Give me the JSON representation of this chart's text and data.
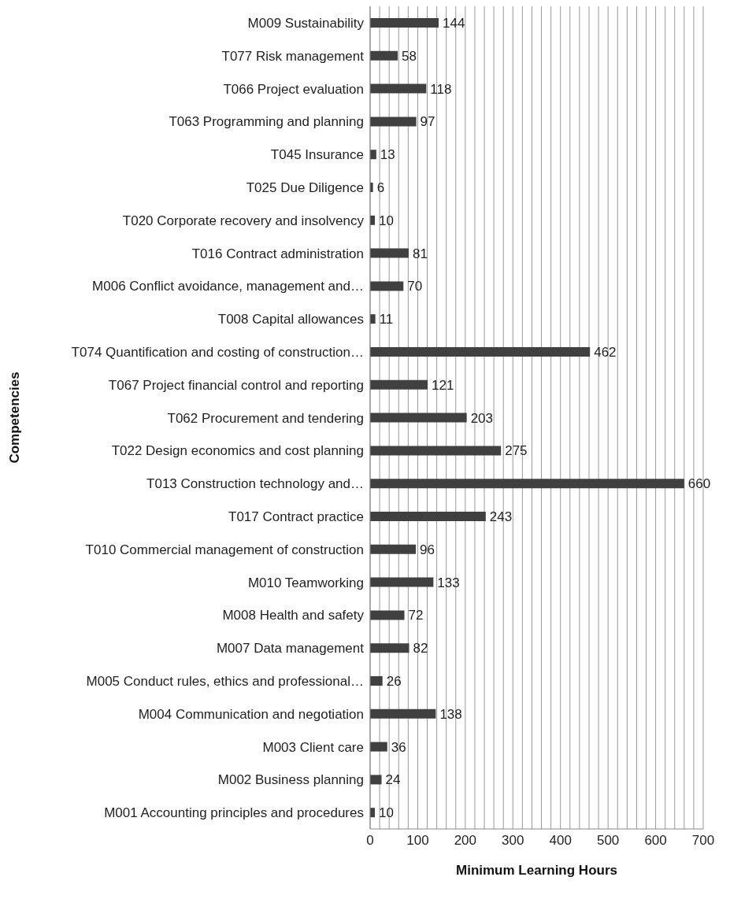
{
  "chart_data": {
    "type": "bar",
    "orientation": "horizontal",
    "xlabel": "Minimum Learning Hours",
    "ylabel": "Competencies",
    "categories": [
      "M009 Sustainability",
      "T077 Risk management",
      "T066 Project evaluation",
      "T063 Programming and planning",
      "T045 Insurance",
      "T025 Due Diligence",
      "T020 Corporate recovery and insolvency",
      "T016 Contract administration",
      "M006 Conflict avoidance, management and…",
      "T008 Capital allowances",
      "T074 Quantification and costing of construction…",
      "T067 Project financial control and reporting",
      "T062 Procurement and tendering",
      "T022 Design economics and cost planning",
      "T013 Construction technology and…",
      "T017 Contract practice",
      "T010 Commercial management of construction",
      "M010 Teamworking",
      "M008 Health and safety",
      "M007 Data management",
      "M005 Conduct rules, ethics and professional…",
      "M004 Communication and negotiation",
      "M003 Client care",
      "M002 Business planning",
      "M001 Accounting principles and procedures"
    ],
    "values": [
      144,
      58,
      118,
      97,
      13,
      6,
      10,
      81,
      70,
      11,
      462,
      121,
      203,
      275,
      660,
      243,
      96,
      133,
      72,
      82,
      26,
      138,
      36,
      24,
      10
    ],
    "color": "#404040",
    "data_labels": true,
    "xlim": [
      0,
      700
    ],
    "xticks": [
      0,
      {
        "value": 20,
        "label": null
      },
      {
        "value": 40,
        "label": null
      },
      {
        "value": 60,
        "label": null
      },
      {
        "value": 80,
        "label": null
      },
      100,
      {
        "value": 120,
        "label": null
      },
      {
        "value": 140,
        "label": null
      },
      {
        "value": 160,
        "label": null
      },
      {
        "value": 180,
        "label": null
      },
      200,
      {
        "value": 220,
        "label": null
      },
      {
        "value": 240,
        "label": null
      },
      {
        "value": 260,
        "label": null
      },
      {
        "value": 280,
        "label": null
      },
      300,
      {
        "value": 320,
        "label": null
      },
      {
        "value": 340,
        "label": null
      },
      {
        "value": 360,
        "label": null
      },
      {
        "value": 380,
        "label": null
      },
      400,
      {
        "value": 420,
        "label": null
      },
      {
        "value": 440,
        "label": null
      },
      {
        "value": 460,
        "label": null
      },
      {
        "value": 480,
        "label": null
      },
      500,
      {
        "value": 520,
        "label": null
      },
      {
        "value": 540,
        "label": null
      },
      {
        "value": 560,
        "label": null
      },
      {
        "value": 580,
        "label": null
      },
      600,
      {
        "value": 620,
        "label": null
      },
      {
        "value": 640,
        "label": null
      },
      {
        "value": 660,
        "label": null
      },
      {
        "value": 680,
        "label": null
      },
      700
    ],
    "grid": "x",
    "legend": false
  }
}
